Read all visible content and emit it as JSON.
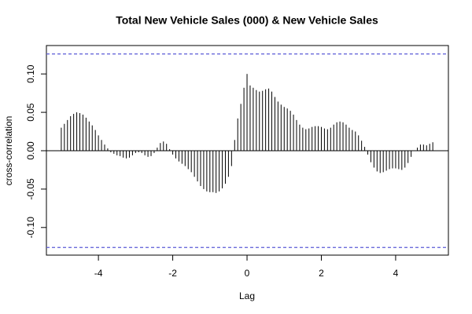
{
  "chart_data": {
    "type": "ccf",
    "title": "Total New Vehicle Sales (000) & New Vehicle Sales",
    "x_label": "Lag",
    "y_label": "cross-correlation",
    "xlim": [
      -5.4,
      5.42
    ],
    "ylim": [
      -0.136,
      0.137
    ],
    "xticks": [
      -4,
      -2,
      0,
      2,
      4
    ],
    "yticks": [
      {
        "value": -0.1,
        "label": "-0.10"
      },
      {
        "value": -0.05,
        "label": "-0.05"
      },
      {
        "value": 0,
        "label": "0.00"
      },
      {
        "value": 0.05,
        "label": "0.05"
      },
      {
        "value": 0.1,
        "label": "0.10"
      }
    ],
    "color": "#000000",
    "ci_lines": [
      0.126,
      -0.126
    ],
    "ci_color": "#5b5bd6",
    "x": [
      -5,
      -4.9167,
      -4.8333,
      -4.75,
      -4.6667,
      -4.5833,
      -4.5,
      -4.4167,
      -4.3333,
      -4.25,
      -4.1667,
      -4.0833,
      -4,
      -3.9167,
      -3.8333,
      -3.75,
      -3.6667,
      -3.5833,
      -3.5,
      -3.4167,
      -3.3333,
      -3.25,
      -3.1667,
      -3.0833,
      -3,
      -2.9167,
      -2.8333,
      -2.75,
      -2.6667,
      -2.5833,
      -2.5,
      -2.4167,
      -2.3333,
      -2.25,
      -2.1667,
      -2.0833,
      -2,
      -1.9167,
      -1.8333,
      -1.75,
      -1.6667,
      -1.5833,
      -1.5,
      -1.4167,
      -1.3333,
      -1.25,
      -1.1667,
      -1.0833,
      -1,
      -0.9167,
      -0.8333,
      -0.75,
      -0.6667,
      -0.5833,
      -0.5,
      -0.4167,
      -0.3333,
      -0.25,
      -0.1667,
      -0.0833,
      0,
      0.0833,
      0.1667,
      0.25,
      0.3333,
      0.4167,
      0.5,
      0.5833,
      0.6667,
      0.75,
      0.8333,
      0.9167,
      1,
      1.0833,
      1.1667,
      1.25,
      1.3333,
      1.4167,
      1.5,
      1.5833,
      1.6667,
      1.75,
      1.8333,
      1.9167,
      2,
      2.0833,
      2.1667,
      2.25,
      2.3333,
      2.4167,
      2.5,
      2.5833,
      2.6667,
      2.75,
      2.8333,
      2.9167,
      3,
      3.0833,
      3.1667,
      3.25,
      3.3333,
      3.4167,
      3.5,
      3.5833,
      3.6667,
      3.75,
      3.8333,
      3.9167,
      4,
      4.0833,
      4.1667,
      4.25,
      4.3333,
      4.4167,
      4.5,
      4.5833,
      4.6667,
      4.75,
      4.8333,
      4.9167,
      5
    ],
    "values": [
      0.03,
      0.035,
      0.04,
      0.045,
      0.048,
      0.05,
      0.049,
      0.047,
      0.043,
      0.038,
      0.033,
      0.027,
      0.02,
      0.014,
      0.008,
      0.003,
      -0.002,
      -0.004,
      -0.006,
      -0.007,
      -0.009,
      -0.01,
      -0.009,
      -0.006,
      -0.003,
      -0.002,
      -0.003,
      -0.006,
      -0.008,
      -0.007,
      -0.003,
      0.004,
      0.01,
      0.012,
      0.009,
      0.002,
      -0.005,
      -0.01,
      -0.014,
      -0.017,
      -0.02,
      -0.024,
      -0.028,
      -0.034,
      -0.04,
      -0.046,
      -0.05,
      -0.053,
      -0.054,
      -0.054,
      -0.055,
      -0.053,
      -0.049,
      -0.043,
      -0.034,
      -0.02,
      0.014,
      0.042,
      0.061,
      0.082,
      0.1,
      0.085,
      0.082,
      0.079,
      0.077,
      0.078,
      0.08,
      0.081,
      0.077,
      0.07,
      0.064,
      0.06,
      0.057,
      0.055,
      0.052,
      0.047,
      0.04,
      0.034,
      0.03,
      0.028,
      0.029,
      0.031,
      0.032,
      0.032,
      0.031,
      0.029,
      0.028,
      0.03,
      0.034,
      0.037,
      0.038,
      0.037,
      0.034,
      0.03,
      0.027,
      0.025,
      0.02,
      0.013,
      0.005,
      -0.005,
      -0.015,
      -0.022,
      -0.027,
      -0.029,
      -0.028,
      -0.026,
      -0.024,
      -0.023,
      -0.023,
      -0.024,
      -0.025,
      -0.022,
      -0.016,
      -0.008,
      0.0,
      0.004,
      0.008,
      0.008,
      0.007,
      0.009,
      0.011
    ]
  }
}
